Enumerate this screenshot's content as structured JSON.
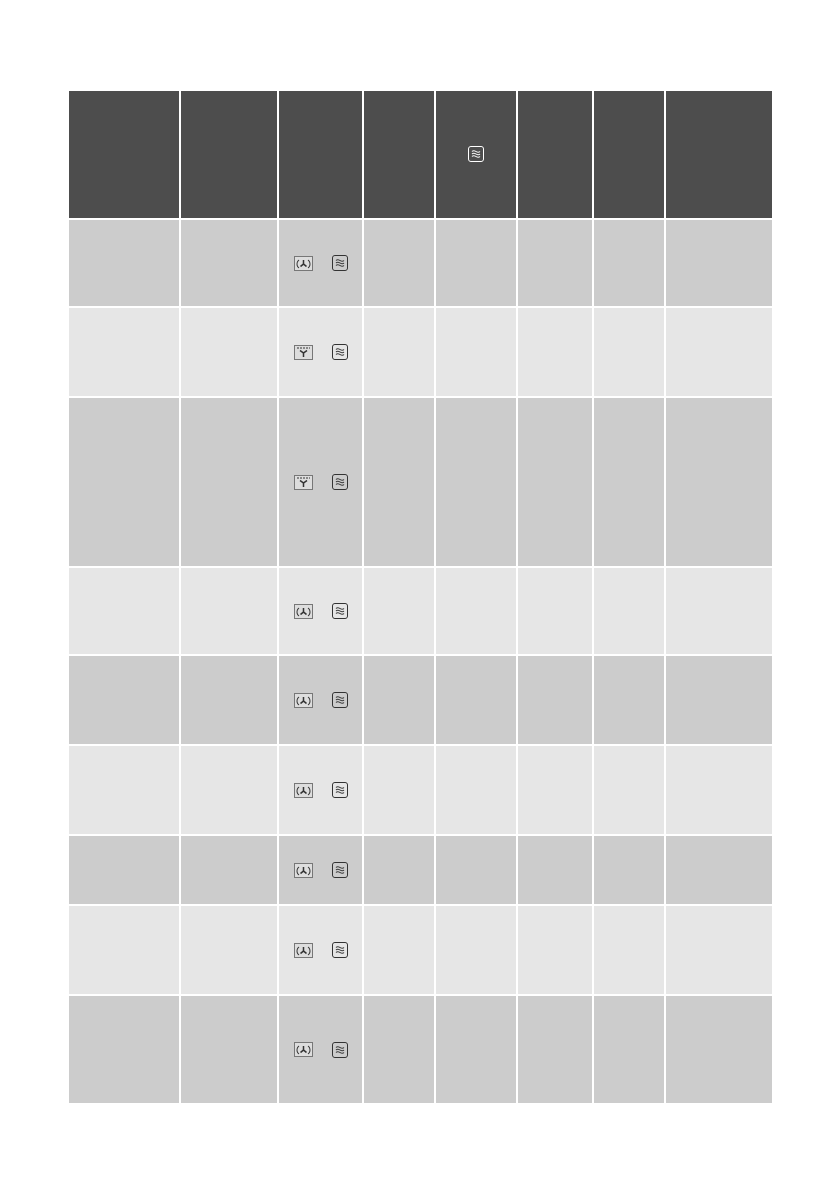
{
  "colors": {
    "header": "#4d4d4d",
    "row_dark": "#cccccc",
    "row_light": "#e6e6e6"
  },
  "header": {
    "icon_col5": "microwave-icon"
  },
  "rows": [
    {
      "icons": [
        "fan-heating-icon",
        "microwave-icon"
      ]
    },
    {
      "icons": [
        "grill-fan-icon",
        "microwave-icon"
      ]
    },
    {
      "icons": [
        "grill-fan-icon",
        "microwave-icon"
      ]
    },
    {
      "icons": [
        "fan-heating-icon",
        "microwave-icon"
      ]
    },
    {
      "icons": [
        "fan-heating-icon",
        "microwave-icon"
      ]
    },
    {
      "icons": [
        "fan-heating-icon",
        "microwave-icon"
      ]
    },
    {
      "icons": [
        "fan-heating-icon",
        "microwave-icon"
      ]
    },
    {
      "icons": [
        "fan-heating-icon",
        "microwave-icon"
      ]
    },
    {
      "icons": [
        "fan-heating-icon",
        "microwave-icon"
      ]
    }
  ]
}
